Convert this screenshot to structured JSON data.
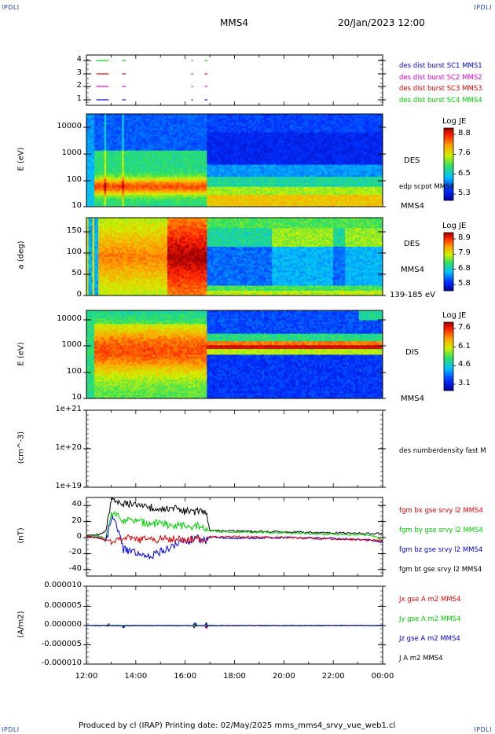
{
  "corners": {
    "tl": "IPDLI",
    "tr": "IPDLI",
    "bl": "IPDLI",
    "br": "IPDLI"
  },
  "header": {
    "spacecraft": "MMS4",
    "datetime": "20/Jan/2023 12:00"
  },
  "footer": "Produced by cl (IRAP)   Printing date: 02/May/2025   mms_mms4_srvy_vue_web1.cl",
  "colors": {
    "blue": "#0000dd",
    "magenta": "#dd00dd",
    "red": "#dd0000",
    "green": "#00cc00",
    "black": "#000000"
  },
  "chart_data": [
    {
      "type": "line",
      "panel": "burst availability",
      "yticks": [
        "1",
        "2",
        "3",
        "4"
      ],
      "legend": [
        {
          "name": "des dist burst SC1 MMS1",
          "color": "#0000dd"
        },
        {
          "name": "des dist burst SC2 MMS2",
          "color": "#dd00dd"
        },
        {
          "name": "des dist burst SC3 MMS3",
          "color": "#dd0000"
        },
        {
          "name": "des dist burst SC4 MMS4",
          "color": "#00cc00"
        }
      ],
      "segments_hours": [
        [
          12.4,
          12.9
        ],
        [
          13.45,
          13.6
        ],
        [
          16.25,
          16.32
        ],
        [
          16.8,
          16.9
        ]
      ]
    },
    {
      "type": "heatmap",
      "panel": "DES energy spectrogram",
      "ylabel": "E (eV)",
      "yticks": [
        "10",
        "100",
        "1000",
        "10000"
      ],
      "colorbar": {
        "title": "Log JE",
        "ticks": [
          "8.8",
          "7.6",
          "6.5",
          "5.3"
        ]
      },
      "labels": [
        "DES",
        "edp scpot MMS4",
        "MMS4"
      ]
    },
    {
      "type": "heatmap",
      "panel": "DES pitch angle",
      "ylabel": "a (deg)",
      "yticks": [
        "0",
        "50",
        "100",
        "150"
      ],
      "colorbar": {
        "title": "Log JE",
        "ticks": [
          "8.9",
          "7.9",
          "6.8",
          "5.8"
        ]
      },
      "labels": [
        "DES",
        "MMS4",
        "139-185 eV"
      ]
    },
    {
      "type": "heatmap",
      "panel": "DIS energy spectrogram",
      "ylabel": "E (eV)",
      "yticks": [
        "10",
        "100",
        "1000",
        "10000"
      ],
      "colorbar": {
        "title": "Log JE",
        "ticks": [
          "7.6",
          "6.1",
          "4.6",
          "3.1"
        ]
      },
      "labels": [
        "DIS",
        "MMS4"
      ]
    },
    {
      "type": "line",
      "panel": "density",
      "ylabel": "(cm^-3)",
      "yticks": [
        "1e+19",
        "1e+20",
        "1e+21"
      ],
      "legend": [
        {
          "name": "des numberdensity fast M",
          "color": "#000000"
        }
      ]
    },
    {
      "type": "line",
      "panel": "magnetic field",
      "ylabel": "(nT)",
      "yticks": [
        "-40",
        "-20",
        "0",
        "20",
        "40"
      ],
      "ylim": [
        -48,
        50
      ],
      "legend": [
        {
          "name": "fgm bx gse srvy l2 MMS4",
          "color": "#dd0000"
        },
        {
          "name": "fgm by gse srvy l2 MMS4",
          "color": "#00cc00"
        },
        {
          "name": "fgm bz gse srvy l2 MMS4",
          "color": "#0000dd"
        },
        {
          "name": "fgm bt gse srvy l2 MMS4",
          "color": "#000000"
        }
      ],
      "x_hours": [
        12,
        12.5,
        12.8,
        13,
        13.2,
        13.5,
        14,
        14.5,
        15,
        15.5,
        16,
        16.5,
        16.85,
        17,
        18,
        20,
        22,
        23.5,
        24
      ],
      "series": [
        {
          "name": "bx",
          "values": [
            2,
            0,
            -3,
            -5,
            -2,
            0,
            -3,
            -2,
            -2,
            -1,
            -3,
            -2,
            -2,
            1,
            1,
            0,
            -2,
            -3,
            -4
          ]
        },
        {
          "name": "by",
          "values": [
            1,
            2,
            -2,
            30,
            28,
            22,
            20,
            18,
            17,
            16,
            15,
            14,
            10,
            8,
            7,
            6,
            4,
            3,
            -3
          ]
        },
        {
          "name": "bz",
          "values": [
            1,
            0,
            -5,
            25,
            18,
            -15,
            -20,
            -25,
            -18,
            -10,
            -5,
            0,
            -5,
            1,
            -1,
            0,
            -1,
            -3,
            -6
          ]
        },
        {
          "name": "bt",
          "values": [
            3,
            3,
            8,
            45,
            44,
            42,
            40,
            38,
            37,
            36,
            33,
            32,
            30,
            9,
            8,
            7,
            6,
            5,
            5
          ]
        }
      ]
    },
    {
      "type": "line",
      "panel": "current density",
      "ylabel": "(A/m2)",
      "yticks": [
        "-0.000010",
        "-0.000005",
        "0.000000",
        "0.000005",
        "0.000010"
      ],
      "ylim": [
        -1e-05,
        1e-05
      ],
      "legend": [
        {
          "name": "Jx gse A m2 MMS4",
          "color": "#dd0000"
        },
        {
          "name": "Jy gse A m2 MMS4",
          "color": "#00cc00"
        },
        {
          "name": "Jz gse A m2 MMS4",
          "color": "#0000dd"
        },
        {
          "name": "J A m2 MMS4",
          "color": "#000000"
        }
      ],
      "xticks": [
        "12:00",
        "14:00",
        "16:00",
        "18:00",
        "20:00",
        "22:00",
        "00:00"
      ]
    }
  ]
}
